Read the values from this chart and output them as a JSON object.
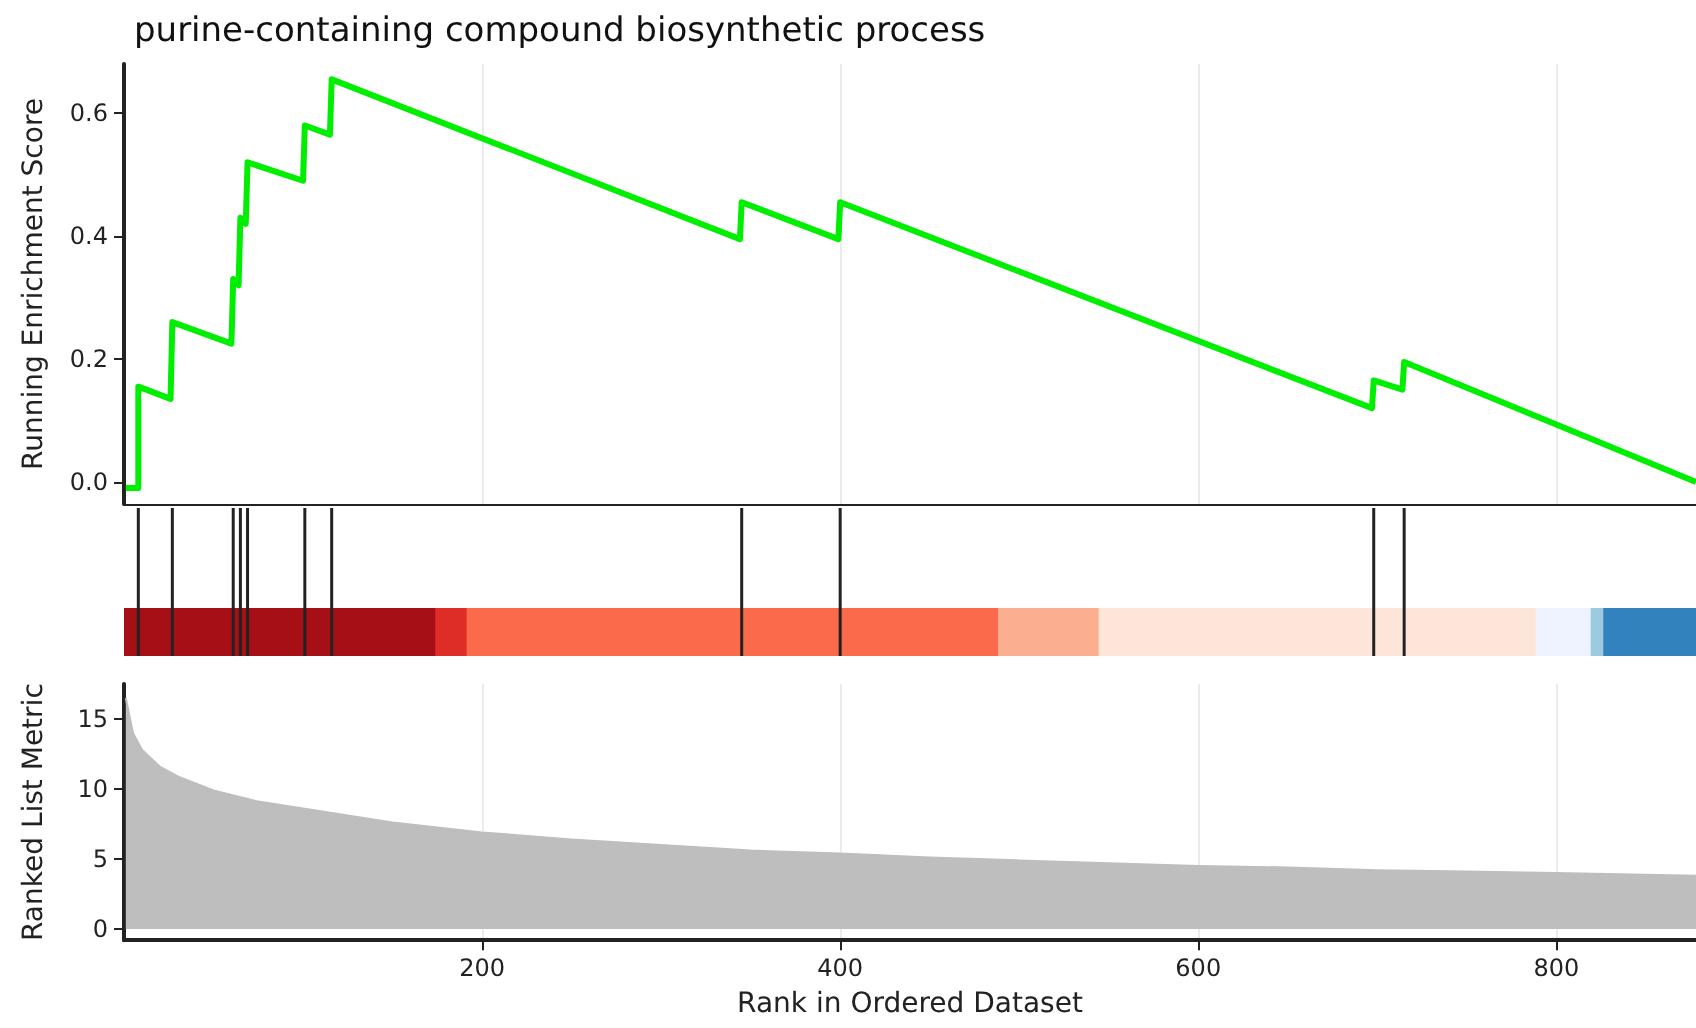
{
  "chart_data": [
    {
      "type": "line",
      "title": "purine-containing compound biosynthetic process",
      "ylabel": "Running Enrichment Score",
      "xlim": [
        0,
        878
      ],
      "ylim": [
        -0.036,
        0.68
      ],
      "yticks": [
        {
          "value": 0,
          "label": "0.0"
        },
        0.2,
        0.4,
        0.6
      ],
      "xticks": [
        200,
        400,
        600,
        800
      ],
      "tick_labels": "y",
      "grid": "x",
      "marker": "none",
      "line_style": "solid",
      "series": [
        {
          "color": "#00ee00",
          "x": [
            1,
            8,
            8,
            26,
            27,
            60,
            61,
            64,
            65,
            68,
            69,
            100,
            101,
            115,
            116,
            344,
            345,
            399,
            400,
            697,
            698,
            714,
            715,
            878
          ],
          "values": [
            -0.01,
            -0.01,
            0.155,
            0.135,
            0.26,
            0.225,
            0.33,
            0.32,
            0.43,
            0.42,
            0.52,
            0.49,
            0.58,
            0.565,
            0.655,
            0.395,
            0.455,
            0.395,
            0.455,
            0.12,
            0.165,
            0.15,
            0.195,
            0.0
          ]
        }
      ]
    },
    {
      "type": "area",
      "xlabel": "Rank in Ordered Dataset",
      "ylabel": "Ranked List Metric",
      "xlim": [
        0,
        878
      ],
      "ylim": [
        -0.8,
        17.5
      ],
      "yticks": [
        0,
        5,
        10,
        15
      ],
      "xticks": [
        200,
        400,
        600,
        800
      ],
      "grid": "x",
      "marker": "none",
      "series": [
        {
          "color": "#bebebe",
          "x": [
            1,
            5,
            10,
            20,
            30,
            50,
            75,
            100,
            150,
            200,
            250,
            300,
            350,
            400,
            450,
            500,
            550,
            600,
            650,
            700,
            750,
            800,
            878
          ],
          "values": [
            16.5,
            14,
            12.8,
            11.6,
            10.9,
            9.9,
            9.1,
            8.6,
            7.6,
            6.9,
            6.4,
            6.0,
            5.6,
            5.4,
            5.1,
            4.9,
            4.7,
            4.5,
            4.4,
            4.2,
            4.1,
            4.0,
            3.8
          ]
        }
      ]
    }
  ]
}
